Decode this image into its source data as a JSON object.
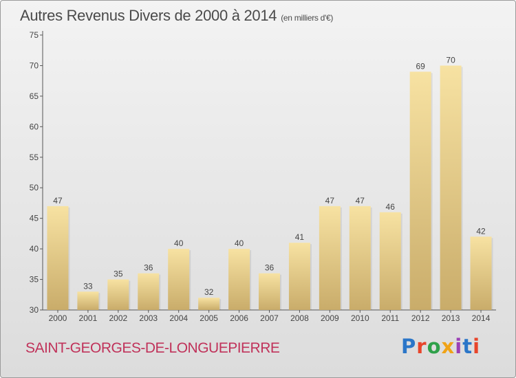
{
  "header": {
    "title": "Autres Revenus Divers de 2000 à 2014",
    "unit": "(en milliers d'€)"
  },
  "footer": {
    "commune": "SAINT-GEORGES-DE-LONGUEPIERRE",
    "brand": "Proxiti",
    "brand_colors": [
      "#2b76c8",
      "#e8452b",
      "#2fa14a",
      "#f0a317",
      "#9b3fb5",
      "#2b76c8",
      "#e8452b"
    ]
  },
  "colors": {
    "bar": "#e6cc8a",
    "axis": "#555555",
    "grid": "#cccccc",
    "text": "#444444",
    "commune": "#c0325a"
  },
  "chart_data": {
    "type": "bar",
    "title": "Autres Revenus Divers de 2000 à 2014",
    "categories": [
      "2000",
      "2001",
      "2002",
      "2003",
      "2004",
      "2005",
      "2006",
      "2007",
      "2008",
      "2009",
      "2010",
      "2011",
      "2012",
      "2013",
      "2014"
    ],
    "values": [
      47,
      33,
      35,
      36,
      40,
      32,
      40,
      36,
      41,
      47,
      47,
      46,
      69,
      70,
      42
    ],
    "yticks": [
      30,
      35,
      40,
      45,
      50,
      55,
      60,
      65,
      70,
      75
    ],
    "ylim": [
      30,
      75
    ],
    "grid": false
  }
}
